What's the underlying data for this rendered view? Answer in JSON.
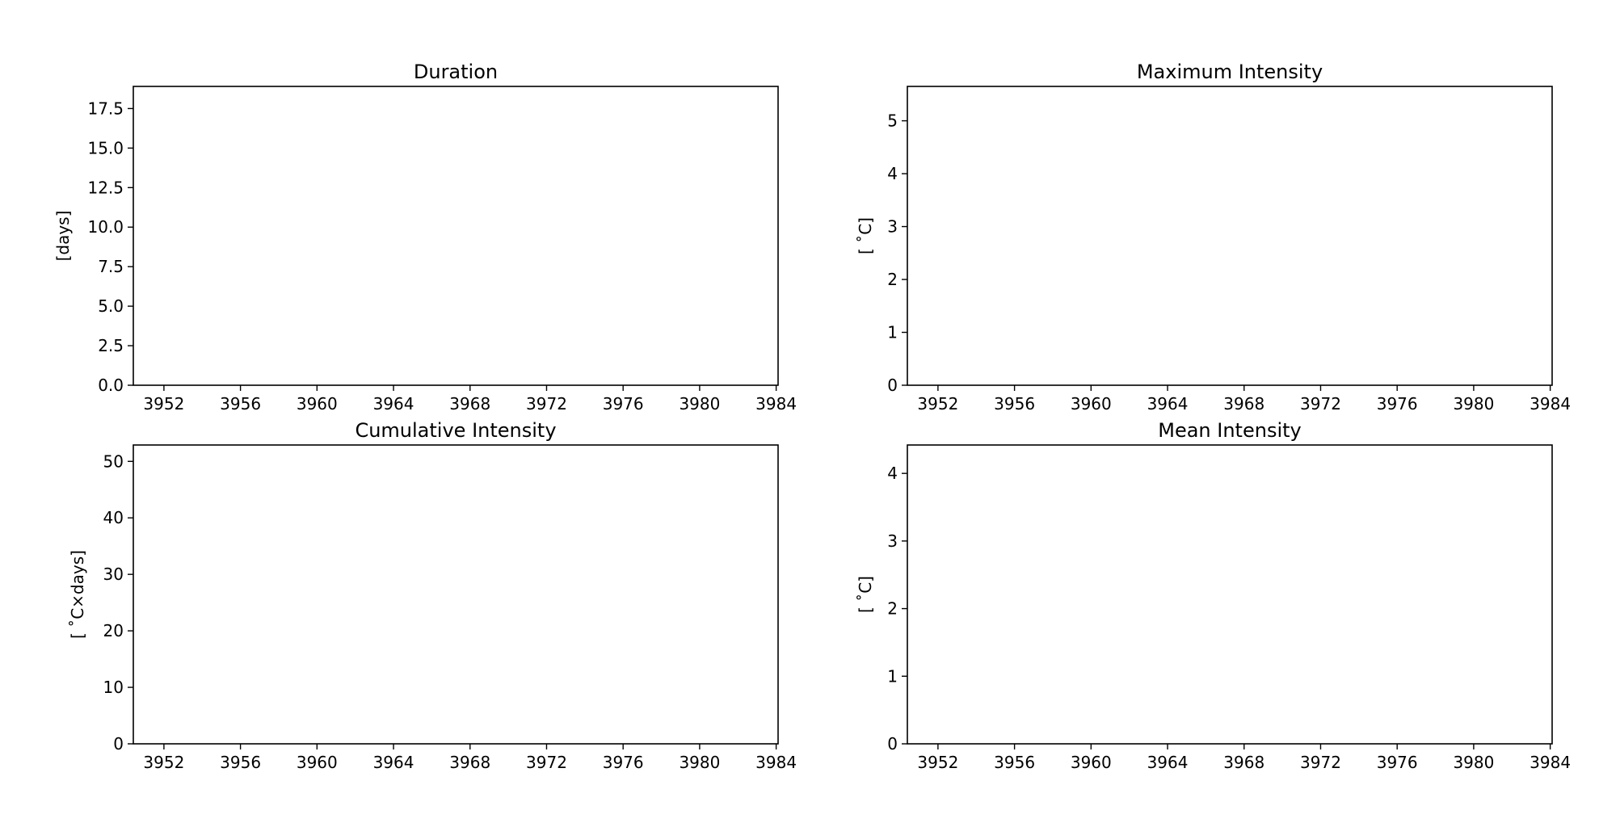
{
  "chart_data": [
    {
      "type": "line",
      "title": "Duration",
      "xlabel": "",
      "ylabel": "[days]",
      "xlim": [
        3950.4,
        3984.1
      ],
      "ylim": [
        0,
        18.9
      ],
      "xticks": [
        3952,
        3956,
        3960,
        3964,
        3968,
        3972,
        3976,
        3980,
        3984
      ],
      "xtick_labels": [
        "3952",
        "3956",
        "3960",
        "3964",
        "3968",
        "3972",
        "3976",
        "3980",
        "3984"
      ],
      "yticks": [
        0,
        2.5,
        5,
        7.5,
        10,
        12.5,
        15,
        17.5
      ],
      "ytick_labels": [
        "0.0",
        "2.5",
        "5.0",
        "7.5",
        "10.0",
        "12.5",
        "15.0",
        "17.5"
      ],
      "series": [],
      "grid": false
    },
    {
      "type": "line",
      "title": "Maximum Intensity",
      "xlabel": "",
      "ylabel": "[$^\\circ$C]",
      "ylabel_display": "[ ˚C]",
      "xlim": [
        3950.4,
        3984.1
      ],
      "ylim": [
        0,
        5.65
      ],
      "xticks": [
        3952,
        3956,
        3960,
        3964,
        3968,
        3972,
        3976,
        3980,
        3984
      ],
      "xtick_labels": [
        "3952",
        "3956",
        "3960",
        "3964",
        "3968",
        "3972",
        "3976",
        "3980",
        "3984"
      ],
      "yticks": [
        0,
        1,
        2,
        3,
        4,
        5
      ],
      "ytick_labels": [
        "0",
        "1",
        "2",
        "3",
        "4",
        "5"
      ],
      "series": [],
      "grid": false
    },
    {
      "type": "line",
      "title": "Cumulative Intensity",
      "xlabel": "",
      "ylabel_display": "[ ˚C×days]",
      "xlim": [
        3950.4,
        3984.1
      ],
      "ylim": [
        0,
        52.9
      ],
      "xticks": [
        3952,
        3956,
        3960,
        3964,
        3968,
        3972,
        3976,
        3980,
        3984
      ],
      "xtick_labels": [
        "3952",
        "3956",
        "3960",
        "3964",
        "3968",
        "3972",
        "3976",
        "3980",
        "3984"
      ],
      "yticks": [
        0,
        10,
        20,
        30,
        40,
        50
      ],
      "ytick_labels": [
        "0",
        "10",
        "20",
        "30",
        "40",
        "50"
      ],
      "series": [],
      "grid": false
    },
    {
      "type": "line",
      "title": "Mean Intensity",
      "xlabel": "",
      "ylabel_display": "[ ˚C]",
      "xlim": [
        3950.4,
        3984.1
      ],
      "ylim": [
        0,
        4.42
      ],
      "xticks": [
        3952,
        3956,
        3960,
        3964,
        3968,
        3972,
        3976,
        3980,
        3984
      ],
      "xtick_labels": [
        "3952",
        "3956",
        "3960",
        "3964",
        "3968",
        "3972",
        "3976",
        "3980",
        "3984"
      ],
      "yticks": [
        0,
        1,
        2,
        3,
        4
      ],
      "ytick_labels": [
        "0",
        "1",
        "2",
        "3",
        "4"
      ],
      "series": [],
      "grid": false
    }
  ]
}
